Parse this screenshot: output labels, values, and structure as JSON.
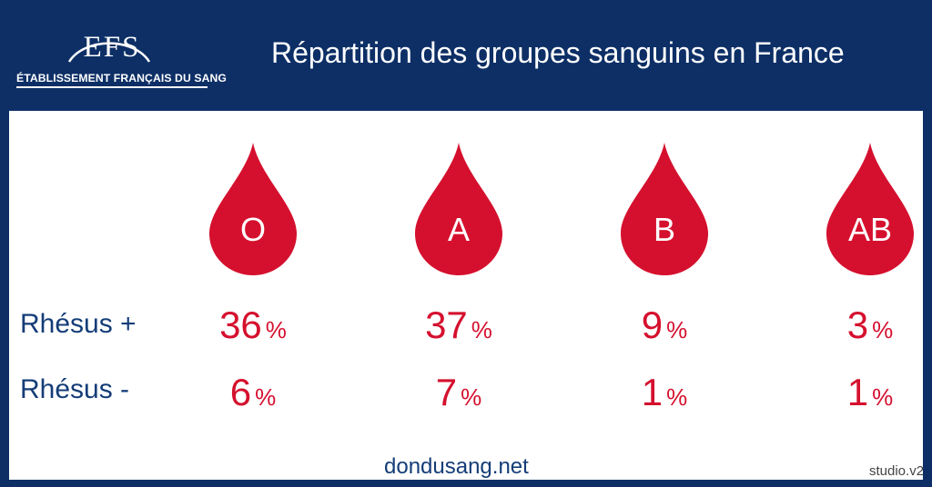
{
  "header": {
    "logo": {
      "letters": "EFS",
      "subtitle": "ÉTABLISSEMENT FRANÇAIS DU SANG"
    },
    "title": "Répartition des groupes sanguins en France"
  },
  "colors": {
    "navy": "#0d2f66",
    "red": "#d5102e",
    "text_blue": "#143d78"
  },
  "icon": "blood-drop-icon",
  "groups": [
    {
      "label": "O",
      "rh_pos": "36",
      "rh_neg": "6"
    },
    {
      "label": "A",
      "rh_pos": "37",
      "rh_neg": "7"
    },
    {
      "label": "B",
      "rh_pos": "9",
      "rh_neg": "1"
    },
    {
      "label": "AB",
      "rh_pos": "3",
      "rh_neg": "1"
    }
  ],
  "rows": {
    "rh_pos_label": "Rhésus +",
    "rh_neg_label": "Rhésus -"
  },
  "unit": "%",
  "footer": {
    "website": "dondusang.net",
    "credit": "studio.v2"
  }
}
